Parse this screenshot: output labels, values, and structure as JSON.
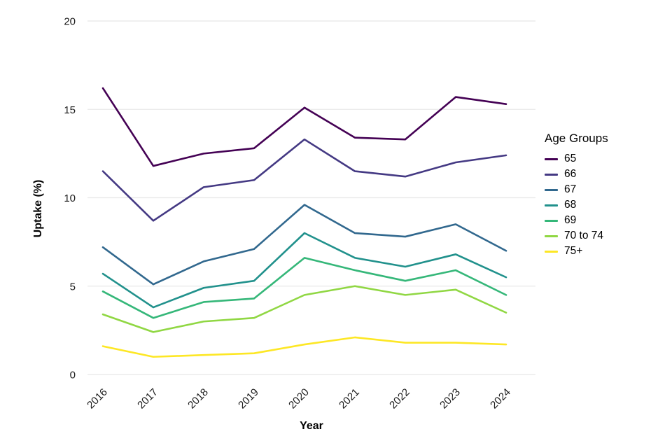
{
  "chart_data": {
    "type": "line",
    "title": "",
    "xlabel": "Year",
    "ylabel": "Uptake (%)",
    "legend_title": "Age Groups",
    "legend_position": "right",
    "x": [
      2016,
      2017,
      2018,
      2019,
      2020,
      2021,
      2022,
      2023,
      2024
    ],
    "ylim": [
      0,
      20
    ],
    "yticks": [
      0,
      5,
      10,
      15,
      20
    ],
    "grid": "horizontal-major-only",
    "grid_color": "#e8e8e8",
    "tick_label_color": "#1a1a1a",
    "series": [
      {
        "name": "65",
        "color": "#440154",
        "values": [
          16.2,
          11.8,
          12.5,
          12.8,
          15.1,
          13.4,
          13.3,
          15.7,
          15.3
        ]
      },
      {
        "name": "66",
        "color": "#443983",
        "values": [
          11.5,
          8.7,
          10.6,
          11.0,
          13.3,
          11.5,
          11.2,
          12.0,
          12.4
        ]
      },
      {
        "name": "67",
        "color": "#31688e",
        "values": [
          7.2,
          5.1,
          6.4,
          7.1,
          9.6,
          8.0,
          7.8,
          8.5,
          7.0
        ]
      },
      {
        "name": "68",
        "color": "#21918c",
        "values": [
          5.7,
          3.8,
          4.9,
          5.3,
          8.0,
          6.6,
          6.1,
          6.8,
          5.5
        ]
      },
      {
        "name": "69",
        "color": "#35b779",
        "values": [
          4.7,
          3.2,
          4.1,
          4.3,
          6.6,
          5.9,
          5.3,
          5.9,
          4.5
        ]
      },
      {
        "name": "70 to 74",
        "color": "#90d743",
        "values": [
          3.4,
          2.4,
          3.0,
          3.2,
          4.5,
          5.0,
          4.5,
          4.8,
          3.5
        ]
      },
      {
        "name": "75+",
        "color": "#fde725",
        "values": [
          1.6,
          1.0,
          1.1,
          1.2,
          1.7,
          2.1,
          1.8,
          1.8,
          1.7
        ]
      }
    ]
  }
}
